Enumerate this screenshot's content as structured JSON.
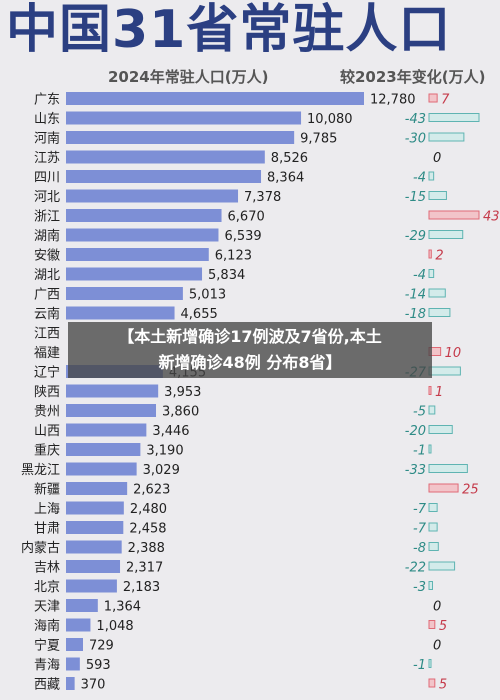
{
  "header": {
    "title": "中国31省常驻人口",
    "subtitle_left": "2024年常驻人口(万人)",
    "subtitle_right": "较2023年变化(万人)"
  },
  "overlay": {
    "line1": "【本土新增确诊17例波及7省份,本土",
    "line2": "新增确诊48例 分布8省】"
  },
  "colors": {
    "bar": "#7d8fd6",
    "positive_change": "#e06a76",
    "negative_change": "#5fb4b2",
    "title": "#2b3f82"
  },
  "chart_data": {
    "type": "bar",
    "orientation": "horizontal",
    "categories": [
      "广东",
      "山东",
      "河南",
      "江苏",
      "四川",
      "河北",
      "浙江",
      "湖南",
      "安徽",
      "湖北",
      "广西",
      "云南",
      "江西",
      "福建",
      "辽宁",
      "陕西",
      "贵州",
      "山西",
      "重庆",
      "黑龙江",
      "新疆",
      "上海",
      "甘肃",
      "内蒙古",
      "吉林",
      "北京",
      "天津",
      "海南",
      "宁夏",
      "青海",
      "西藏"
    ],
    "series": [
      {
        "values": [
          12780,
          10080,
          9785,
          8526,
          8364,
          7378,
          6670,
          6539,
          6123,
          5834,
          5013,
          4655,
          null,
          null,
          4155,
          3953,
          3860,
          3446,
          3190,
          3029,
          2623,
          2480,
          2458,
          2388,
          2317,
          2183,
          1364,
          1048,
          729,
          593,
          370
        ]
      },
      {
        "values": [
          7,
          -43,
          -30,
          0,
          -4,
          -15,
          43,
          -29,
          2,
          -4,
          -14,
          -18,
          null,
          10,
          -27,
          1,
          -5,
          -20,
          -1,
          -33,
          25,
          -7,
          -7,
          -8,
          -22,
          -3,
          0,
          5,
          0,
          -1,
          5
        ]
      }
    ],
    "value_labels": [
      "12,780",
      "10,080",
      "9,785",
      "8,526",
      "8,364",
      "7,378",
      "6,670",
      "6,539",
      "6,123",
      "5,834",
      "5,013",
      "4,655",
      "",
      "",
      "4,155",
      "3,953",
      "3,860",
      "3,446",
      "3,190",
      "3,029",
      "2,623",
      "2,480",
      "2,458",
      "2,388",
      "2,317",
      "2,183",
      "1,364",
      "1,048",
      "729",
      "593",
      "370"
    ],
    "change_labels": [
      "7",
      "-43",
      "-30",
      "0",
      "-4",
      "-15",
      "43",
      "-29",
      "2",
      "-4",
      "-14",
      "-18",
      "",
      "10",
      "-27",
      "1",
      "-5",
      "-20",
      "-1",
      "-33",
      "25",
      "-7",
      "-7",
      "-8",
      "-22",
      "-3",
      "0",
      "5",
      "0",
      "-1",
      "5"
    ]
  }
}
